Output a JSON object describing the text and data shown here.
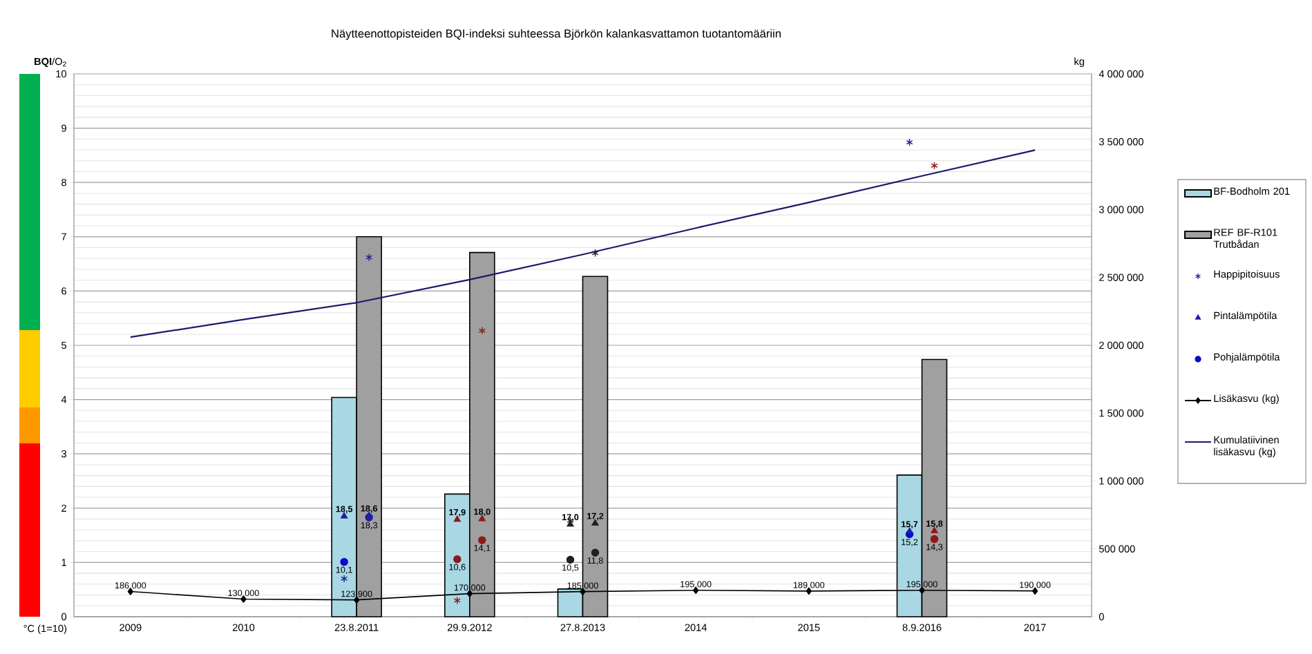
{
  "chart_data": {
    "type": "bar",
    "title": "Näytteenottopisteiden BQI-indeksi suhteessa Björkön kalankasvattamon tuotantomääriin",
    "xlabel": "°C (1=10)",
    "ylabel": "**BQI**/O$_{2}$",
    "y2label": "kg",
    "categories": [
      "2009",
      "2010",
      "23.8.2011",
      "29.9.2012",
      "27.8.2013",
      "2014",
      "2015",
      "8.9.2016",
      "2017"
    ],
    "ylim": [
      0,
      10
    ],
    "yticks": [
      0,
      1,
      2,
      3,
      4,
      5,
      6,
      7,
      8,
      9,
      10
    ],
    "y2lim": [
      0,
      4000000
    ],
    "y2ticks": [
      0,
      {
        "value": 500000,
        "label": "500 000"
      },
      {
        "value": 1000000,
        "label": "1 000 000"
      },
      {
        "value": 1500000,
        "label": "1 500 000"
      },
      {
        "value": 2000000,
        "label": "2 000 000"
      },
      {
        "value": 2500000,
        "label": "2 500 000"
      },
      {
        "value": 3000000,
        "label": "3 000 000"
      },
      {
        "value": 3500000,
        "label": "3 500 000"
      },
      {
        "value": 4000000,
        "label": "4 000 000"
      }
    ],
    "annotations": [
      {
        "text": "18,5",
        "x": "23.8.2011",
        "y": 1.85
      },
      {
        "text": "17,9",
        "x": "29.9.2012",
        "y": 1.79
      },
      {
        "text": "17,0",
        "x": "27.8.2013",
        "y": 1.7
      },
      {
        "text": "15,7",
        "x": "8.9.2016",
        "y": 1.57
      },
      {
        "text": "18,6",
        "x": "23.8.2011",
        "y": 1.86
      },
      {
        "text": "18,0",
        "x": "29.9.2012",
        "y": 1.8
      },
      {
        "text": "17,2",
        "x": "27.8.2013",
        "y": 1.72
      },
      {
        "text": "15,8",
        "x": "8.9.2016",
        "y": 1.58
      },
      {
        "text": "10,1",
        "x": "23.8.2011",
        "y": 1.01
      },
      {
        "text": "10,6",
        "x": "29.9.2012",
        "y": 1.06
      },
      {
        "text": "10,5",
        "x": "27.8.2013",
        "y": 1.05
      },
      {
        "text": "15,2",
        "x": "8.9.2016",
        "y": 1.52
      },
      {
        "text": "18,3",
        "x": "23.8.2011",
        "y": 1.83
      },
      {
        "text": "14,1",
        "x": "29.9.2012",
        "y": 1.41
      },
      {
        "text": "11,8",
        "x": "27.8.2013",
        "y": 1.18
      },
      {
        "text": "14,3",
        "x": "8.9.2016",
        "y": 1.43
      }
    ],
    "grid": "y",
    "legend": "right",
    "series": [
      {
        "name": "BF-Bodholm 201",
        "color": "#a9d8e4",
        "values": [
          null,
          null,
          4.04,
          2.26,
          0.51,
          null,
          null,
          2.61,
          null
        ]
      },
      {
        "name": "REF BF-R101 Trutbådan",
        "color": "#a0a0a0",
        "values": [
          null,
          null,
          7.0,
          6.71,
          6.27,
          null,
          null,
          4.74,
          null
        ]
      },
      {
        "name": "Happipitoisuus",
        "type": "scatter",
        "marker": "cross",
        "color": "#1f1f9f",
        "x": [
          "23.8.2011",
          "29.9.2012",
          "27.8.2013",
          "8.9.2016"
        ],
        "values": [
          0.7,
          0.3,
          1.77,
          8.74
        ],
        "colors": [
          "#1f1f9f",
          "#8b1a1a",
          "#202020",
          "#1f1f9f"
        ]
      },
      {
        "type": "scatter",
        "marker": "cross",
        "x": [
          "23.8.2011",
          "29.9.2012",
          "27.8.2013",
          "8.9.2016"
        ],
        "values": [
          6.62,
          5.27,
          6.7,
          8.31
        ],
        "colors": [
          "#1f1f9f",
          "#8b1a1a",
          "#202020",
          "#8b1a1a"
        ]
      },
      {
        "name": "Pintalämpötila",
        "type": "scatter",
        "marker": "triangle",
        "color": "#1f1f9f",
        "x": [
          "23.8.2011",
          "29.9.2012",
          "27.8.2013",
          "8.9.2016"
        ],
        "values": [
          1.85,
          1.79,
          1.7,
          1.57
        ],
        "colors": [
          "#1f1f9f",
          "#8b1a1a",
          "#202020",
          "#1f1f9f"
        ]
      },
      {
        "type": "scatter",
        "marker": "triangle",
        "x": [
          "23.8.2011",
          "29.9.2012",
          "27.8.2013",
          "8.9.2016"
        ],
        "values": [
          1.86,
          1.8,
          1.72,
          1.58
        ],
        "colors": [
          "#1f1f9f",
          "#8b1a1a",
          "#202020",
          "#8b1a1a"
        ]
      },
      {
        "name": "Pohjalämpötila",
        "type": "scatter",
        "marker": "circle",
        "color": "#0a0acc",
        "x": [
          "23.8.2011",
          "29.9.2012",
          "27.8.2013",
          "8.9.2016"
        ],
        "values": [
          1.01,
          1.06,
          1.05,
          1.52
        ],
        "colors": [
          "#0a0acc",
          "#8b1a1a",
          "#202020",
          "#0a0acc"
        ]
      },
      {
        "type": "scatter",
        "marker": "circle",
        "x": [
          "23.8.2011",
          "29.9.2012",
          "27.8.2013",
          "8.9.2016"
        ],
        "values": [
          1.83,
          1.41,
          1.18,
          1.43
        ],
        "colors": [
          "#1f1f9f",
          "#8b1a1a",
          "#202020",
          "#8b1a1a"
        ]
      },
      {
        "name": "Lisäkasvu (kg)",
        "type": "line",
        "axis": "y2",
        "marker": "diamond",
        "color": "#000000",
        "values": [
          186000,
          130000,
          123900,
          170000,
          185000,
          195000,
          189000,
          195000,
          190000
        ],
        "value_labels": [
          "186 000",
          "130 000",
          "123 900",
          "170 000",
          "185 000",
          "195 000",
          "189 000",
          "195 000",
          "190 000"
        ]
      },
      {
        "name": "Kumulatiivinen lisäkasvu (kg)",
        "type": "line",
        "axis": "y2",
        "color": "#1a1a6e",
        "values": [
          2060000,
          2190000,
          2314000,
          2484000,
          2669000,
          2864000,
          3053000,
          3248000,
          3438000
        ]
      }
    ]
  }
}
